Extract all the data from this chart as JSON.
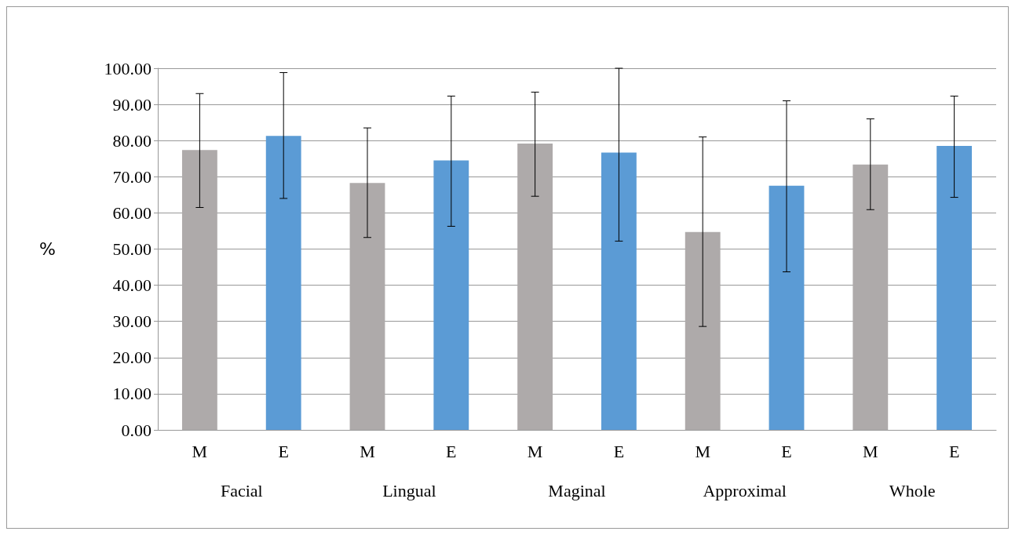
{
  "chart_data": {
    "type": "bar",
    "ylabel": "%",
    "categories": [
      "M",
      "E",
      "M",
      "E",
      "M",
      "E",
      "M",
      "E",
      "M",
      "E"
    ],
    "annotations": [
      "Facial",
      "Lingual",
      "Maginal",
      "Approximal",
      "Whole"
    ],
    "values": [
      77.4,
      81.3,
      68.3,
      74.5,
      79.2,
      76.7,
      54.7,
      67.5,
      73.4,
      78.5
    ],
    "errors": [
      [
        61.5,
        93.0
      ],
      [
        64.0,
        98.8
      ],
      [
        53.2,
        83.5
      ],
      [
        56.3,
        92.3
      ],
      [
        64.6,
        93.4
      ],
      [
        52.2,
        100.0
      ],
      [
        28.6,
        81.0
      ],
      [
        43.7,
        91.0
      ],
      [
        60.9,
        86.0
      ],
      [
        64.3,
        92.3
      ]
    ],
    "colors": [
      "#aeaaaa",
      "#5b9bd5",
      "#aeaaaa",
      "#5b9bd5",
      "#aeaaaa",
      "#5b9bd5",
      "#aeaaaa",
      "#5b9bd5",
      "#aeaaaa",
      "#5b9bd5"
    ],
    "ylim": [
      0,
      100
    ],
    "yticks": [
      {
        "value": 0,
        "label": "0.00"
      },
      {
        "value": 10,
        "label": "10.00"
      },
      {
        "value": 20,
        "label": "20.00"
      },
      {
        "value": 30,
        "label": "30.00"
      },
      {
        "value": 40,
        "label": "40.00"
      },
      {
        "value": 50,
        "label": "50.00"
      },
      {
        "value": 60,
        "label": "60.00"
      },
      {
        "value": 70,
        "label": "70.00"
      },
      {
        "value": 80,
        "label": "80.00"
      },
      {
        "value": 90,
        "label": "90.00"
      },
      {
        "value": 100,
        "label": "100.00"
      }
    ],
    "grid": "y"
  }
}
